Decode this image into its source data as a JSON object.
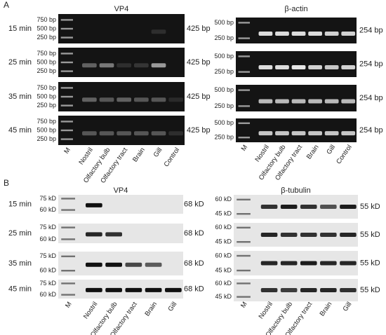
{
  "panels": [
    {
      "label": "A",
      "gels": [
        {
          "title": "VP4",
          "rows": [
            {
              "time": "15 min",
              "ladder": [
                "750 bp",
                "500 bp",
                "250 bp"
              ],
              "size": "425 bp"
            },
            {
              "time": "25 min",
              "ladder": [
                "750 bp",
                "500 bp",
                "250 bp"
              ],
              "size": "425 bp"
            },
            {
              "time": "35 min",
              "ladder": [
                "750 bp",
                "500 bp",
                "250 bp"
              ],
              "size": "425 bp"
            },
            {
              "time": "45 min",
              "ladder": [
                "750 bp",
                "500 bp",
                "250 bp"
              ],
              "size": "425 bp"
            }
          ],
          "lanes": [
            "M",
            "Nostril",
            "Olfactory bulb",
            "Olfactory tract",
            "Brain",
            "Gill",
            "Control"
          ]
        },
        {
          "title": "β-actin",
          "rows": [
            {
              "ladder": [
                "500 bp",
                "250 bp"
              ],
              "size": "254 bp"
            },
            {
              "ladder": [
                "500 bp",
                "250 bp"
              ],
              "size": "254 bp"
            },
            {
              "ladder": [
                "500 bp",
                "250 bp"
              ],
              "size": "254 bp"
            },
            {
              "ladder": [
                "500 bp",
                "250 bp"
              ],
              "size": "254 bp"
            }
          ],
          "lanes": [
            "M",
            "Nostril",
            "Olfactory bulb",
            "Olfactory tract",
            "Brain",
            "Gill",
            "Control"
          ]
        }
      ]
    },
    {
      "label": "B",
      "gels": [
        {
          "title": "VP4",
          "rows": [
            {
              "time": "15 min",
              "ladder": [
                "75 kD",
                "60 kD"
              ],
              "size": "68 kD"
            },
            {
              "time": "25 min",
              "ladder": [
                "75 kD",
                "60 kD"
              ],
              "size": "68 kD"
            },
            {
              "time": "35 min",
              "ladder": [
                "75 kD",
                "60 kD"
              ],
              "size": "68 kD"
            },
            {
              "time": "45 min",
              "ladder": [
                "75 kD",
                "60 kD"
              ],
              "size": "68 kD"
            }
          ],
          "lanes": [
            "M",
            "Nostril",
            "Olfactory bulb",
            "Olfactory tract",
            "Brain",
            "Gill"
          ]
        },
        {
          "title": "β-tubulin",
          "rows": [
            {
              "ladder": [
                "60 kD",
                "45 kD"
              ],
              "size": "55 kD"
            },
            {
              "ladder": [
                "60 kD",
                "45 kD"
              ],
              "size": "55 kD"
            },
            {
              "ladder": [
                "60 kD",
                "45 kD"
              ],
              "size": "55 kD"
            },
            {
              "ladder": [
                "60 kD",
                "45 kD"
              ],
              "size": "55 kD"
            }
          ],
          "lanes": [
            "M",
            "Nostril",
            "Olfactory bulb",
            "Olfactory tract",
            "Brain",
            "Gill"
          ]
        }
      ]
    }
  ]
}
